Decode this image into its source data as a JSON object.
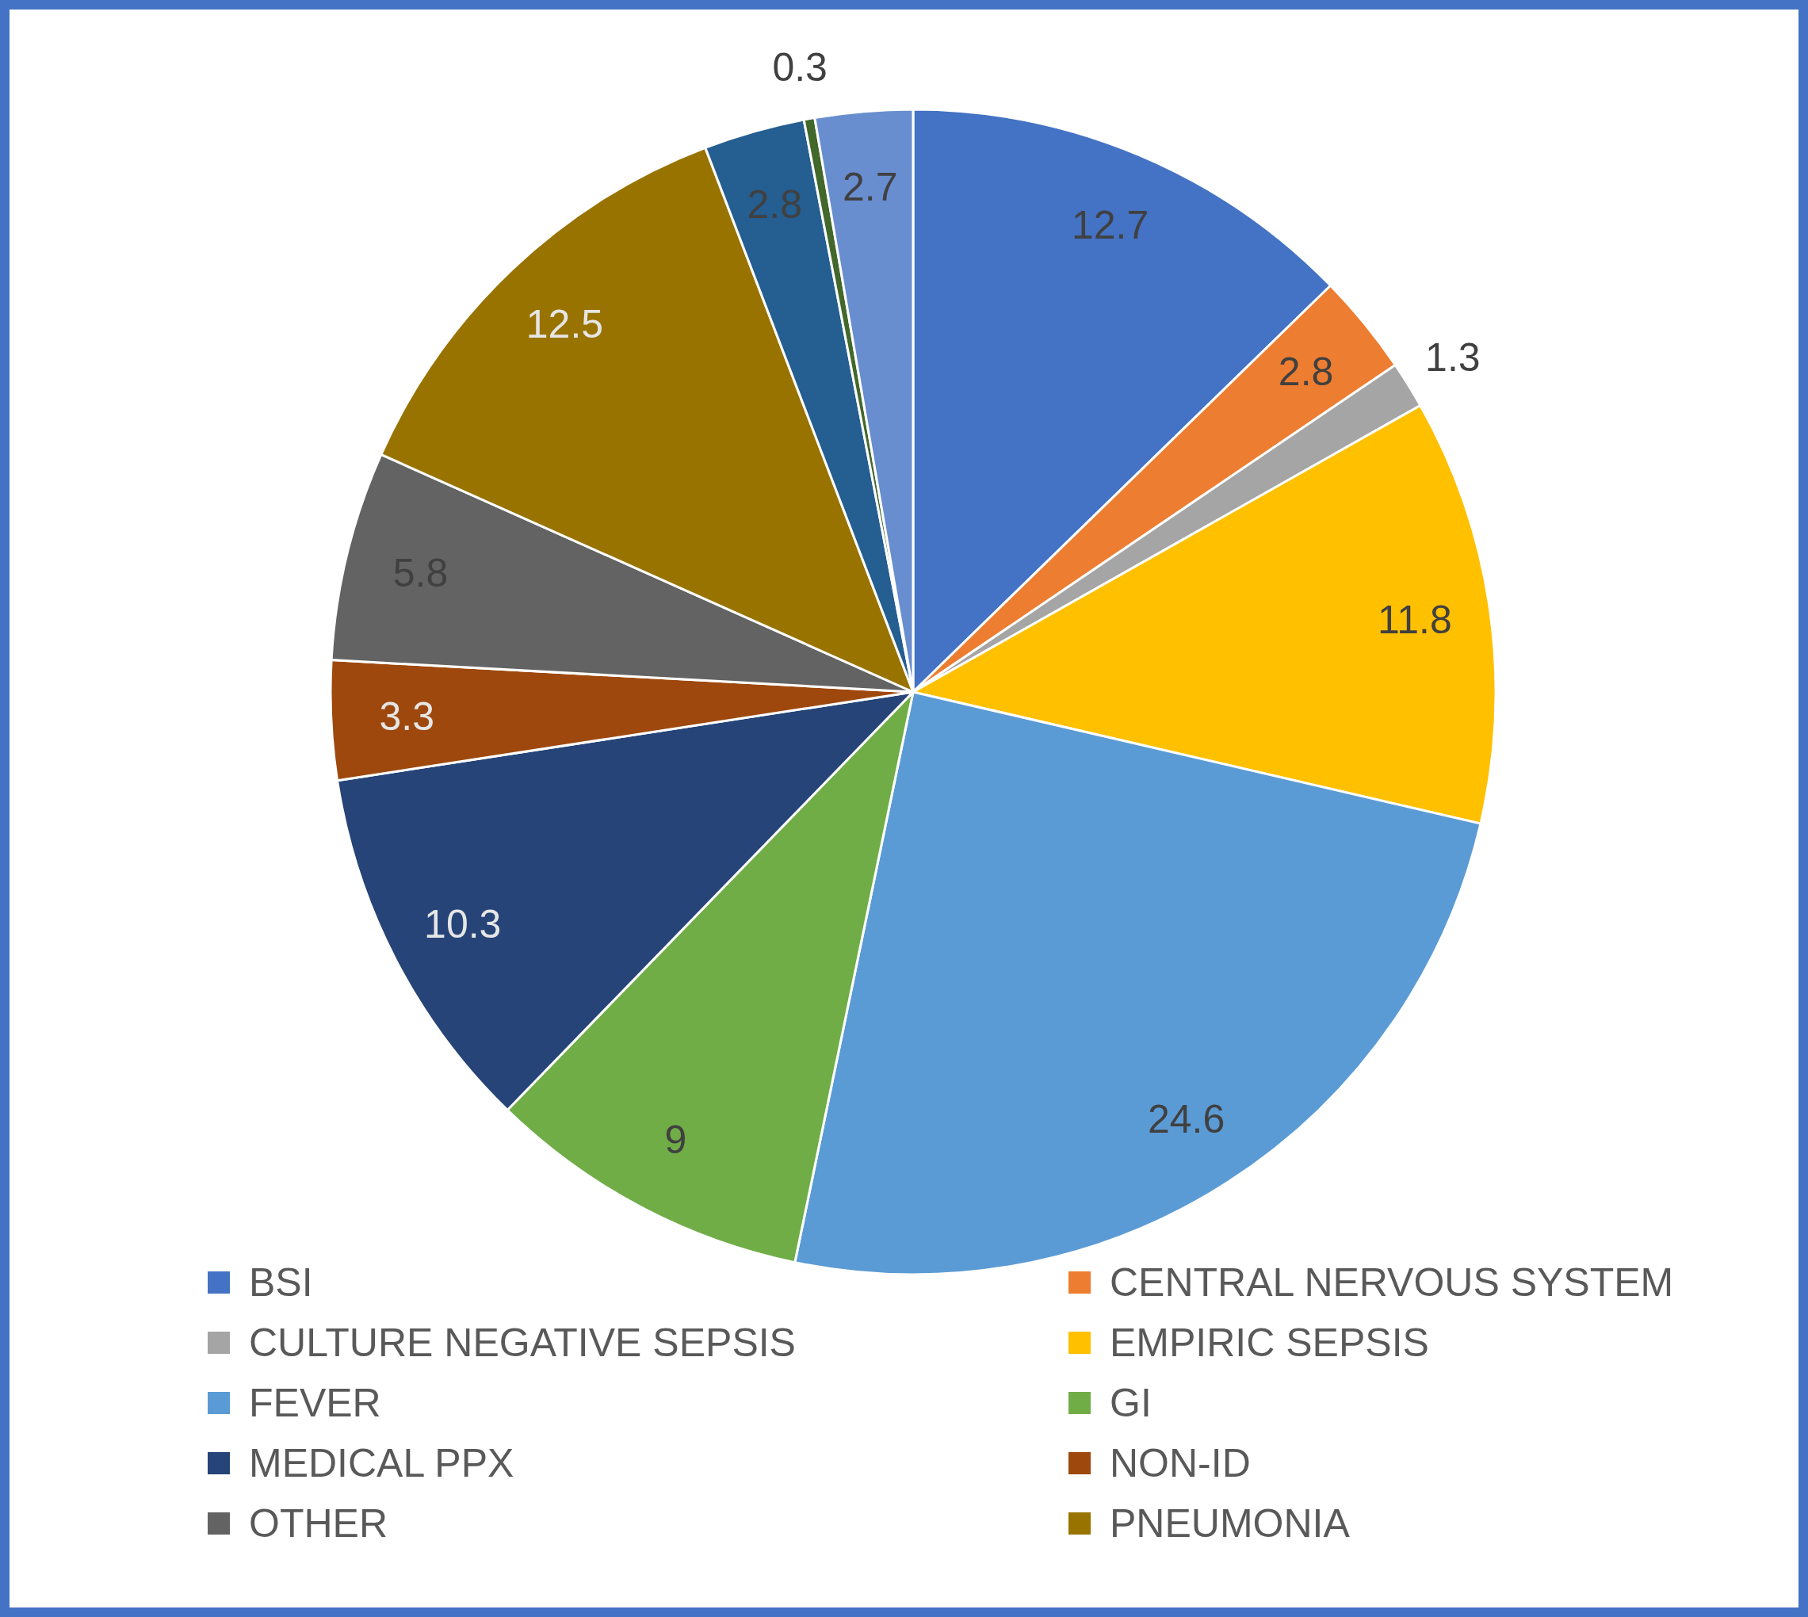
{
  "chart_data": {
    "type": "pie",
    "categories": [
      "BSI",
      "CENTRAL NERVOUS SYSTEM",
      "CULTURE NEGATIVE SEPSIS",
      "EMPIRIC SEPSIS",
      "FEVER",
      "GI",
      "MEDICAL PPX",
      "NON-ID",
      "OTHER",
      "PNEUMONIA",
      null,
      null,
      null
    ],
    "values": [
      12.7,
      2.8,
      1.3,
      11.8,
      24.6,
      9,
      10.3,
      3.3,
      5.8,
      12.5,
      2.8,
      0.3,
      2.7
    ],
    "colors": [
      "#4472c4",
      "#ed7d31",
      "#a5a5a5",
      "#ffc000",
      "#5b9bd5",
      "#70ad47",
      "#264478",
      "#9e480e",
      "#636363",
      "#997300",
      "#255e91",
      "#43682b",
      "#698ed0"
    ],
    "data_labels": true,
    "legend": "bottom"
  }
}
